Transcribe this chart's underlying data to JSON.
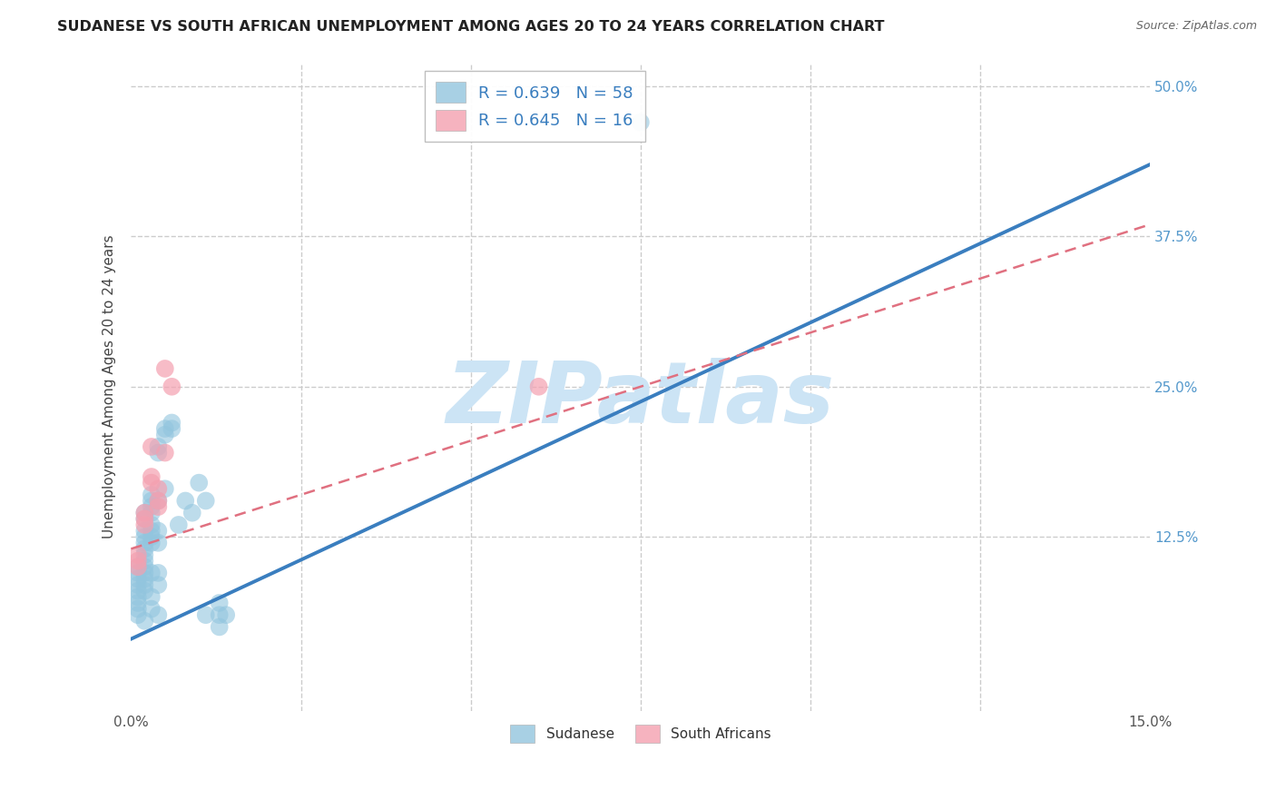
{
  "title": "SUDANESE VS SOUTH AFRICAN UNEMPLOYMENT AMONG AGES 20 TO 24 YEARS CORRELATION CHART",
  "source": "Source: ZipAtlas.com",
  "ylabel": "Unemployment Among Ages 20 to 24 years",
  "xlim": [
    0.0,
    0.15
  ],
  "ylim": [
    -0.02,
    0.52
  ],
  "legend1_R": "R = 0.639",
  "legend1_N": "N = 58",
  "legend2_R": "R = 0.645",
  "legend2_N": "N = 16",
  "blue_color": "#92c5de",
  "pink_color": "#f4a0b0",
  "blue_line_color": "#3a7ebf",
  "pink_line_color": "#e07080",
  "watermark": "ZIPatlas",
  "watermark_color": "#cce4f5",
  "background_color": "#ffffff",
  "grid_color": "#cccccc",
  "blue_scatter": [
    [
      0.001,
      0.1
    ],
    [
      0.001,
      0.095
    ],
    [
      0.001,
      0.09
    ],
    [
      0.001,
      0.085
    ],
    [
      0.001,
      0.08
    ],
    [
      0.001,
      0.075
    ],
    [
      0.001,
      0.07
    ],
    [
      0.001,
      0.065
    ],
    [
      0.001,
      0.06
    ],
    [
      0.002,
      0.145
    ],
    [
      0.002,
      0.14
    ],
    [
      0.002,
      0.13
    ],
    [
      0.002,
      0.125
    ],
    [
      0.002,
      0.12
    ],
    [
      0.002,
      0.115
    ],
    [
      0.002,
      0.11
    ],
    [
      0.002,
      0.105
    ],
    [
      0.002,
      0.1
    ],
    [
      0.002,
      0.095
    ],
    [
      0.002,
      0.09
    ],
    [
      0.002,
      0.085
    ],
    [
      0.002,
      0.08
    ],
    [
      0.002,
      0.055
    ],
    [
      0.003,
      0.16
    ],
    [
      0.003,
      0.155
    ],
    [
      0.003,
      0.15
    ],
    [
      0.003,
      0.145
    ],
    [
      0.003,
      0.135
    ],
    [
      0.003,
      0.13
    ],
    [
      0.003,
      0.125
    ],
    [
      0.003,
      0.12
    ],
    [
      0.003,
      0.095
    ],
    [
      0.003,
      0.075
    ],
    [
      0.003,
      0.065
    ],
    [
      0.004,
      0.2
    ],
    [
      0.004,
      0.195
    ],
    [
      0.004,
      0.155
    ],
    [
      0.004,
      0.13
    ],
    [
      0.004,
      0.12
    ],
    [
      0.004,
      0.095
    ],
    [
      0.004,
      0.085
    ],
    [
      0.004,
      0.06
    ],
    [
      0.005,
      0.215
    ],
    [
      0.005,
      0.21
    ],
    [
      0.005,
      0.165
    ],
    [
      0.006,
      0.22
    ],
    [
      0.006,
      0.215
    ],
    [
      0.007,
      0.135
    ],
    [
      0.008,
      0.155
    ],
    [
      0.009,
      0.145
    ],
    [
      0.01,
      0.17
    ],
    [
      0.011,
      0.155
    ],
    [
      0.011,
      0.06
    ],
    [
      0.013,
      0.07
    ],
    [
      0.013,
      0.06
    ],
    [
      0.013,
      0.05
    ],
    [
      0.014,
      0.06
    ],
    [
      0.075,
      0.47
    ]
  ],
  "pink_scatter": [
    [
      0.001,
      0.11
    ],
    [
      0.001,
      0.105
    ],
    [
      0.001,
      0.1
    ],
    [
      0.002,
      0.145
    ],
    [
      0.002,
      0.14
    ],
    [
      0.002,
      0.135
    ],
    [
      0.003,
      0.175
    ],
    [
      0.003,
      0.17
    ],
    [
      0.003,
      0.2
    ],
    [
      0.004,
      0.165
    ],
    [
      0.004,
      0.155
    ],
    [
      0.004,
      0.15
    ],
    [
      0.005,
      0.195
    ],
    [
      0.005,
      0.265
    ],
    [
      0.006,
      0.25
    ],
    [
      0.06,
      0.25
    ]
  ],
  "blue_line_x": [
    0.0,
    0.15
  ],
  "blue_line_y": [
    0.04,
    0.435
  ],
  "pink_line_x": [
    0.0,
    0.15
  ],
  "pink_line_y": [
    0.115,
    0.385
  ]
}
